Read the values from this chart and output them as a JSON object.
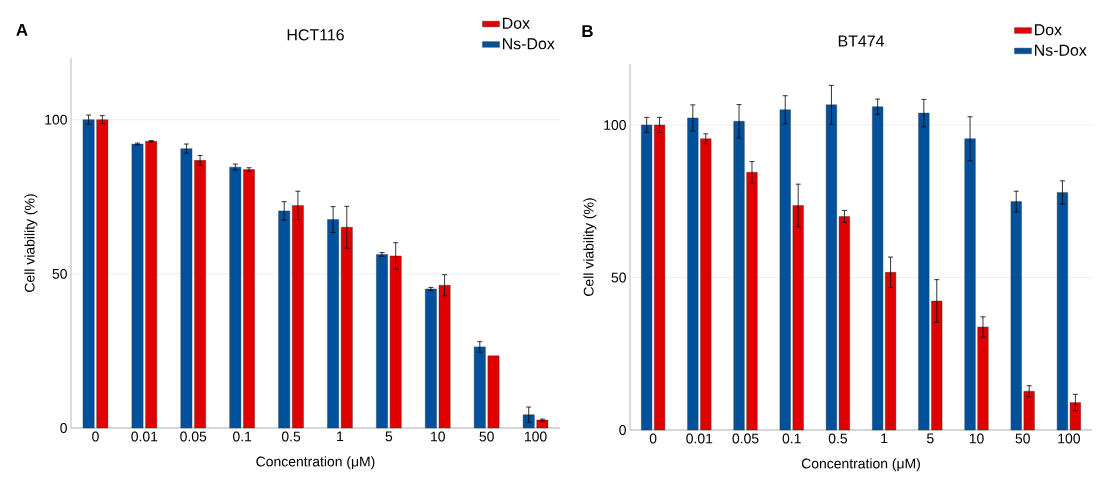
{
  "chart_data": [
    {
      "type": "bar",
      "title": "HCT116",
      "xlabel": "Concentration (μM)",
      "ylabel": "Cell viability (%)",
      "categories": [
        "0",
        "0.01",
        "0.05",
        "0.1",
        "0.5",
        "1",
        "5",
        "10",
        "50",
        "100"
      ],
      "series": [
        {
          "name": "Ns-Dox",
          "color": "#00519c",
          "values": [
            100,
            92.1,
            90.6,
            84.6,
            70.4,
            67.6,
            56.3,
            45.1,
            26.3,
            4.3
          ],
          "errors": [
            1.5,
            0.3,
            1.5,
            1,
            3,
            4.2,
            0.6,
            0.5,
            1.7,
            2.5
          ]
        },
        {
          "name": "Dox",
          "color": "#e00000",
          "values": [
            100,
            93,
            86.8,
            83.8,
            72.2,
            65.1,
            55.8,
            46.3,
            23.4,
            2.6
          ],
          "errors": [
            1.3,
            0.2,
            1.6,
            0.6,
            4.6,
            6.8,
            4.3,
            3.4,
            null,
            0.3
          ]
        }
      ],
      "ylim": [
        0,
        120
      ],
      "yticks": [
        0,
        50,
        100
      ],
      "grid": "y",
      "legend": "top right",
      "annotations": [
        "A"
      ]
    },
    {
      "type": "bar",
      "title": "BT474",
      "xlabel": "Concentration (μM)",
      "ylabel": "Cell viability (%)",
      "categories": [
        "0",
        "0.01",
        "0.05",
        "0.1",
        "0.5",
        "1",
        "5",
        "10",
        "50",
        "100"
      ],
      "series": [
        {
          "name": "Ns-Dox",
          "color": "#00519c",
          "values": [
            100,
            102.3,
            101.2,
            105,
            106.6,
            106,
            103.9,
            95.5,
            74.9,
            77.9
          ],
          "errors": [
            2.5,
            4.3,
            5.5,
            4.6,
            6.4,
            2.5,
            4.5,
            7.2,
            3.4,
            3.8
          ]
        },
        {
          "name": "Dox",
          "color": "#e00000",
          "values": [
            100,
            95.5,
            84.5,
            73.6,
            70,
            51.7,
            42.3,
            33.8,
            12.7,
            9
          ],
          "errors": [
            2.5,
            1.6,
            3.5,
            7,
            2,
            5,
            7,
            3.3,
            1.8,
            2.7
          ]
        }
      ],
      "ylim": [
        0,
        120
      ],
      "yticks": [
        0,
        50,
        100
      ],
      "grid": "y",
      "legend": "top right",
      "annotations": [
        "B"
      ]
    }
  ]
}
